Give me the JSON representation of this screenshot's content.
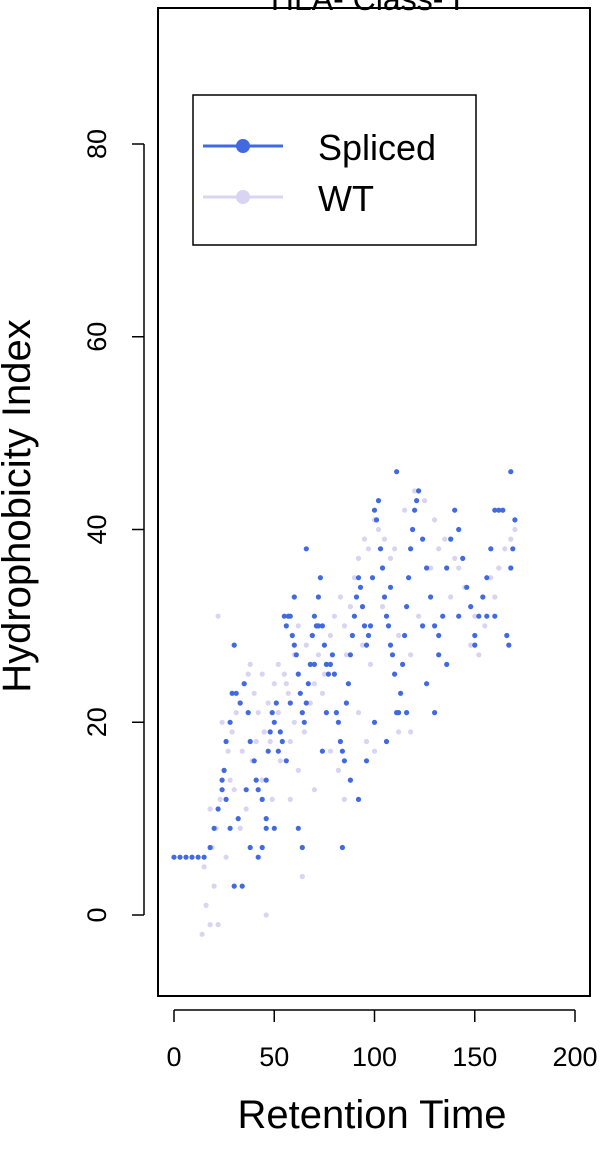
{
  "chart_data": {
    "type": "scatter",
    "title": "HLA- Class- I",
    "xlabel": "Retention Time",
    "ylabel": "Hydrophobicity Index",
    "xlim": [
      -8,
      200
    ],
    "ylim": [
      -10,
      94
    ],
    "x_ticks": [
      0,
      50,
      100,
      150,
      200
    ],
    "y_ticks": [
      0,
      20,
      40,
      60,
      80
    ],
    "grid": false,
    "legend_position": "top-left",
    "series": [
      {
        "name": "WT",
        "color": "#d8d4f2",
        "points": [
          [
            14,
            -2
          ],
          [
            16,
            1
          ],
          [
            18,
            -1
          ],
          [
            20,
            3
          ],
          [
            22,
            -1
          ],
          [
            15,
            5
          ],
          [
            19,
            7
          ],
          [
            21,
            9
          ],
          [
            23,
            12
          ],
          [
            25,
            15
          ],
          [
            27,
            17
          ],
          [
            29,
            19
          ],
          [
            31,
            21
          ],
          [
            33,
            22
          ],
          [
            35,
            24
          ],
          [
            37,
            25
          ],
          [
            40,
            23
          ],
          [
            42,
            21
          ],
          [
            45,
            19
          ],
          [
            47,
            22
          ],
          [
            50,
            24
          ],
          [
            52,
            26
          ],
          [
            55,
            25
          ],
          [
            57,
            23
          ],
          [
            60,
            20
          ],
          [
            22,
            31
          ],
          [
            28,
            14
          ],
          [
            30,
            13
          ],
          [
            33,
            9
          ],
          [
            36,
            11
          ],
          [
            39,
            16
          ],
          [
            41,
            18
          ],
          [
            44,
            14
          ],
          [
            46,
            0
          ],
          [
            49,
            12
          ],
          [
            53,
            16
          ],
          [
            58,
            18
          ],
          [
            62,
            15
          ],
          [
            65,
            19
          ],
          [
            68,
            22
          ],
          [
            70,
            24
          ],
          [
            72,
            27
          ],
          [
            75,
            25
          ],
          [
            78,
            29
          ],
          [
            80,
            31
          ],
          [
            83,
            33
          ],
          [
            85,
            30
          ],
          [
            88,
            32
          ],
          [
            90,
            35
          ],
          [
            92,
            37
          ],
          [
            95,
            39
          ],
          [
            97,
            38
          ],
          [
            100,
            41
          ],
          [
            102,
            40
          ],
          [
            105,
            39
          ],
          [
            108,
            37
          ],
          [
            110,
            38
          ],
          [
            115,
            42
          ],
          [
            120,
            44
          ],
          [
            125,
            43
          ],
          [
            130,
            41
          ],
          [
            135,
            39
          ],
          [
            140,
            37
          ],
          [
            145,
            34
          ],
          [
            150,
            31
          ],
          [
            155,
            30
          ],
          [
            160,
            33
          ],
          [
            162,
            36
          ],
          [
            165,
            38
          ],
          [
            168,
            39
          ],
          [
            170,
            40
          ],
          [
            78,
            17
          ],
          [
            82,
            15
          ],
          [
            85,
            12
          ],
          [
            88,
            14
          ],
          [
            70,
            13
          ],
          [
            64,
            4
          ],
          [
            58,
            12
          ],
          [
            26,
            6
          ],
          [
            18,
            11
          ],
          [
            24,
            20
          ],
          [
            34,
            17
          ],
          [
            48,
            18
          ],
          [
            52,
            21
          ],
          [
            56,
            24
          ],
          [
            60,
            27
          ],
          [
            62,
            30
          ],
          [
            66,
            28
          ],
          [
            74,
            23
          ],
          [
            86,
            27
          ],
          [
            94,
            28
          ],
          [
            98,
            26
          ],
          [
            104,
            32
          ],
          [
            112,
            29
          ],
          [
            118,
            27
          ],
          [
            122,
            31
          ],
          [
            128,
            36
          ],
          [
            132,
            38
          ],
          [
            138,
            33
          ],
          [
            142,
            36
          ],
          [
            148,
            28
          ],
          [
            152,
            27
          ],
          [
            158,
            35
          ],
          [
            164,
            42
          ],
          [
            112,
            19
          ],
          [
            118,
            19
          ],
          [
            92,
            21
          ],
          [
            96,
            18
          ],
          [
            100,
            17
          ],
          [
            44,
            25
          ],
          [
            38,
            26
          ]
        ]
      },
      {
        "name": "Spliced",
        "color": "#4169e1",
        "points": [
          [
            0,
            6
          ],
          [
            3,
            6
          ],
          [
            6,
            6
          ],
          [
            9,
            6
          ],
          [
            12,
            6
          ],
          [
            15,
            6
          ],
          [
            18,
            7
          ],
          [
            20,
            9
          ],
          [
            22,
            11
          ],
          [
            24,
            13
          ],
          [
            25,
            15
          ],
          [
            26,
            18
          ],
          [
            28,
            20
          ],
          [
            29,
            23
          ],
          [
            30,
            28
          ],
          [
            31,
            23
          ],
          [
            33,
            22
          ],
          [
            35,
            24
          ],
          [
            37,
            21
          ],
          [
            38,
            18
          ],
          [
            40,
            16
          ],
          [
            41,
            14
          ],
          [
            42,
            13
          ],
          [
            44,
            12
          ],
          [
            46,
            14
          ],
          [
            47,
            17
          ],
          [
            48,
            19
          ],
          [
            49,
            21
          ],
          [
            50,
            20
          ],
          [
            51,
            22
          ],
          [
            53,
            19
          ],
          [
            54,
            18
          ],
          [
            55,
            31
          ],
          [
            56,
            30
          ],
          [
            57,
            31
          ],
          [
            58,
            31
          ],
          [
            59,
            29
          ],
          [
            60,
            28
          ],
          [
            61,
            27
          ],
          [
            62,
            25
          ],
          [
            63,
            23
          ],
          [
            64,
            21
          ],
          [
            65,
            20
          ],
          [
            66,
            22
          ],
          [
            67,
            24
          ],
          [
            68,
            26
          ],
          [
            69,
            29
          ],
          [
            70,
            31
          ],
          [
            71,
            30
          ],
          [
            72,
            33
          ],
          [
            73,
            35
          ],
          [
            74,
            30
          ],
          [
            75,
            28
          ],
          [
            76,
            26
          ],
          [
            77,
            25
          ],
          [
            78,
            26
          ],
          [
            79,
            27
          ],
          [
            80,
            25
          ],
          [
            81,
            21
          ],
          [
            82,
            20
          ],
          [
            83,
            18
          ],
          [
            84,
            17
          ],
          [
            85,
            16
          ],
          [
            86,
            22
          ],
          [
            87,
            24
          ],
          [
            88,
            27
          ],
          [
            89,
            29
          ],
          [
            90,
            31
          ],
          [
            91,
            33
          ],
          [
            92,
            35
          ],
          [
            93,
            34
          ],
          [
            94,
            32
          ],
          [
            95,
            30
          ],
          [
            96,
            28
          ],
          [
            97,
            29
          ],
          [
            98,
            30
          ],
          [
            99,
            35
          ],
          [
            100,
            42
          ],
          [
            101,
            41
          ],
          [
            102,
            43
          ],
          [
            103,
            38
          ],
          [
            104,
            36
          ],
          [
            105,
            33
          ],
          [
            106,
            31
          ],
          [
            107,
            30
          ],
          [
            108,
            28
          ],
          [
            109,
            27
          ],
          [
            110,
            25
          ],
          [
            111,
            21
          ],
          [
            112,
            21
          ],
          [
            113,
            23
          ],
          [
            114,
            26
          ],
          [
            115,
            29
          ],
          [
            116,
            32
          ],
          [
            117,
            35
          ],
          [
            118,
            38
          ],
          [
            119,
            40
          ],
          [
            120,
            42
          ],
          [
            121,
            43
          ],
          [
            122,
            44
          ],
          [
            124,
            39
          ],
          [
            126,
            36
          ],
          [
            128,
            33
          ],
          [
            130,
            30
          ],
          [
            132,
            27
          ],
          [
            134,
            31
          ],
          [
            136,
            36
          ],
          [
            138,
            39
          ],
          [
            140,
            42
          ],
          [
            142,
            40
          ],
          [
            144,
            37
          ],
          [
            146,
            34
          ],
          [
            148,
            32
          ],
          [
            150,
            29
          ],
          [
            152,
            31
          ],
          [
            154,
            33
          ],
          [
            156,
            35
          ],
          [
            158,
            38
          ],
          [
            160,
            42
          ],
          [
            162,
            42
          ],
          [
            164,
            42
          ],
          [
            166,
            29
          ],
          [
            167,
            28
          ],
          [
            168,
            36
          ],
          [
            169,
            38
          ],
          [
            170,
            41
          ],
          [
            168,
            46
          ],
          [
            111,
            46
          ],
          [
            60,
            33
          ],
          [
            66,
            38
          ],
          [
            70,
            26
          ],
          [
            36,
            13
          ],
          [
            38,
            7
          ],
          [
            44,
            7
          ],
          [
            46,
            9
          ],
          [
            52,
            17
          ],
          [
            56,
            16
          ],
          [
            62,
            9
          ],
          [
            64,
            7
          ],
          [
            72,
            30
          ],
          [
            84,
            7
          ],
          [
            96,
            16
          ],
          [
            100,
            20
          ],
          [
            106,
            18
          ],
          [
            116,
            21
          ],
          [
            130,
            21
          ],
          [
            76,
            21
          ],
          [
            30,
            3
          ],
          [
            34,
            3
          ],
          [
            28,
            9
          ],
          [
            32,
            10
          ],
          [
            24,
            14
          ],
          [
            26,
            12
          ],
          [
            42,
            6
          ],
          [
            46,
            10
          ],
          [
            50,
            9
          ],
          [
            58,
            22
          ],
          [
            74,
            17
          ],
          [
            88,
            14
          ],
          [
            92,
            12
          ],
          [
            108,
            34
          ],
          [
            124,
            30
          ],
          [
            136,
            26
          ],
          [
            142,
            31
          ],
          [
            150,
            28
          ],
          [
            156,
            31
          ],
          [
            160,
            31
          ],
          [
            126,
            24
          ],
          [
            132,
            29
          ]
        ]
      }
    ]
  }
}
